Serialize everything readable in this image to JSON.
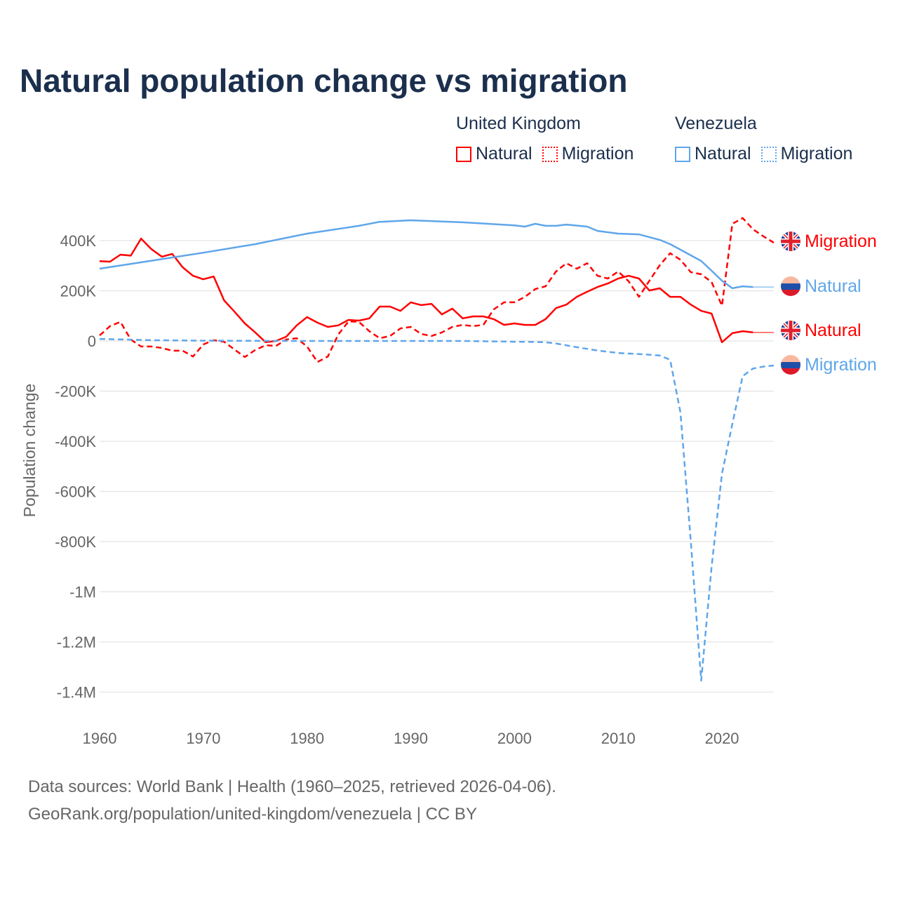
{
  "title": "Natural population change vs migration",
  "legend": {
    "groups": [
      {
        "country": "United Kingdom",
        "items": [
          "Natural",
          "Migration"
        ],
        "color": "#ff0000"
      },
      {
        "country": "Venezuela",
        "items": [
          "Natural",
          "Migration"
        ],
        "color": "#5fa6ea"
      }
    ]
  },
  "footer": {
    "line1": "Data sources: World Bank | Health (1960–2025, retrieved 2026-04-06).",
    "line2": "GeoRank.org/population/united-kingdom/venezuela | CC BY"
  },
  "chart_data": {
    "type": "line",
    "title": "Natural population change vs migration",
    "xlabel": "",
    "ylabel": "Population change",
    "xlim": [
      1960,
      2025
    ],
    "ylim": [
      -1500000,
      500000
    ],
    "xticks": [
      1960,
      1970,
      1980,
      1990,
      2000,
      2010,
      2020
    ],
    "xtick_labels": [
      "1960",
      "1970",
      "1980",
      "1990",
      "2000",
      "2010",
      "2020"
    ],
    "yticks": [
      400000,
      200000,
      0,
      -200000,
      -400000,
      -600000,
      -800000,
      -1000000,
      -1200000,
      -1400000
    ],
    "ytick_labels": [
      "400K",
      "200K",
      "0",
      "-200K",
      "-400K",
      "-600K",
      "-800K",
      "-1M",
      "-1.2M",
      "-1.4M"
    ],
    "grid": true,
    "legend_placement": "top-right",
    "series": [
      {
        "name": "United Kingdom Natural",
        "label": "Natural",
        "country": "United Kingdom",
        "color": "#ff0000",
        "dash": false,
        "extend_to": 2025,
        "x": [
          1960,
          1961,
          1962,
          1963,
          1964,
          1965,
          1966,
          1967,
          1968,
          1969,
          1970,
          1971,
          1972,
          1973,
          1974,
          1975,
          1976,
          1977,
          1978,
          1979,
          1980,
          1981,
          1982,
          1983,
          1984,
          1985,
          1986,
          1987,
          1988,
          1989,
          1990,
          1991,
          1992,
          1993,
          1994,
          1995,
          1996,
          1997,
          1998,
          1999,
          2000,
          2001,
          2002,
          2003,
          2004,
          2005,
          2006,
          2007,
          2008,
          2009,
          2010,
          2011,
          2012,
          2013,
          2014,
          2015,
          2016,
          2017,
          2018,
          2019,
          2020,
          2021,
          2022,
          2023
        ],
        "y": [
          318000,
          316000,
          344000,
          340000,
          408000,
          366000,
          336000,
          347000,
          294000,
          260000,
          246000,
          257000,
          162000,
          117000,
          70000,
          34000,
          -5000,
          0,
          17000,
          62000,
          95000,
          73000,
          56000,
          62000,
          84000,
          81000,
          90000,
          137000,
          137000,
          120000,
          154000,
          143000,
          148000,
          106000,
          129000,
          90000,
          98000,
          98000,
          87000,
          64000,
          70000,
          64000,
          64000,
          87000,
          131000,
          145000,
          176000,
          196000,
          215000,
          229000,
          249000,
          260000,
          249000,
          201000,
          210000,
          176000,
          176000,
          145000,
          120000,
          109000,
          -5000,
          31000,
          39000,
          34000
        ]
      },
      {
        "name": "United Kingdom Migration",
        "label": "Migration",
        "country": "United Kingdom",
        "color": "#ff0000",
        "dash": true,
        "x": [
          1960,
          1961,
          1962,
          1963,
          1964,
          1965,
          1966,
          1967,
          1968,
          1969,
          1970,
          1971,
          1972,
          1973,
          1974,
          1975,
          1976,
          1977,
          1978,
          1979,
          1980,
          1981,
          1982,
          1983,
          1984,
          1985,
          1986,
          1987,
          1988,
          1989,
          1990,
          1991,
          1992,
          1993,
          1994,
          1995,
          1996,
          1997,
          1998,
          1999,
          2000,
          2001,
          2002,
          2003,
          2004,
          2005,
          2006,
          2007,
          2008,
          2009,
          2010,
          2011,
          2012,
          2013,
          2014,
          2015,
          2016,
          2017,
          2018,
          2019,
          2020,
          2021,
          2022,
          2023,
          2024,
          2025
        ],
        "y": [
          22000,
          59000,
          76000,
          6000,
          -22000,
          -22000,
          -28000,
          -39000,
          -39000,
          -62000,
          -14000,
          3000,
          -3000,
          -34000,
          -64000,
          -36000,
          -17000,
          -20000,
          6000,
          11000,
          -22000,
          -84000,
          -62000,
          25000,
          78000,
          76000,
          39000,
          11000,
          20000,
          50000,
          56000,
          28000,
          20000,
          34000,
          56000,
          64000,
          59000,
          64000,
          126000,
          154000,
          154000,
          176000,
          207000,
          218000,
          277000,
          310000,
          288000,
          310000,
          260000,
          249000,
          277000,
          238000,
          176000,
          240000,
          302000,
          350000,
          324000,
          274000,
          266000,
          235000,
          140000,
          467000,
          490000,
          445000,
          417000,
          392000
        ]
      },
      {
        "name": "Venezuela Natural",
        "label": "Natural",
        "country": "Venezuela",
        "color": "#5fa6ea",
        "dash": false,
        "extend_to": 2025,
        "x": [
          1960,
          1965,
          1970,
          1975,
          1980,
          1985,
          1987,
          1990,
          1992,
          1995,
          2000,
          2001,
          2002,
          2003,
          2004,
          2005,
          2007,
          2008,
          2010,
          2012,
          2014,
          2015,
          2016,
          2018,
          2019,
          2020,
          2021,
          2022,
          2023
        ],
        "y": [
          288000,
          320000,
          352000,
          386000,
          428000,
          459000,
          475000,
          481000,
          478000,
          473000,
          461000,
          456000,
          467000,
          459000,
          459000,
          464000,
          456000,
          439000,
          428000,
          425000,
          403000,
          386000,
          364000,
          319000,
          280000,
          240000,
          210000,
          218000,
          215000
        ]
      },
      {
        "name": "Venezuela Migration",
        "label": "Migration",
        "country": "Venezuela",
        "color": "#5fa6ea",
        "dash": true,
        "x": [
          1960,
          1965,
          1970,
          1980,
          1990,
          1995,
          2000,
          2002,
          2003,
          2004,
          2006,
          2008,
          2010,
          2012,
          2014,
          2015,
          2016,
          2017,
          2018,
          2019,
          2020,
          2021,
          2022,
          2023,
          2024,
          2025
        ],
        "y": [
          8000,
          3000,
          1000,
          0,
          0,
          0,
          -3000,
          -4000,
          -5000,
          -10000,
          -25000,
          -38000,
          -48000,
          -52000,
          -58000,
          -75000,
          -285000,
          -800000,
          -1354000,
          -900000,
          -529000,
          -330000,
          -140000,
          -110000,
          -102000,
          -98000
        ]
      }
    ],
    "end_labels": [
      {
        "text": "Migration",
        "series": 1
      },
      {
        "text": "Natural",
        "series": 2
      },
      {
        "text": "Natural",
        "series": 0
      },
      {
        "text": "Migration",
        "series": 3
      }
    ]
  }
}
